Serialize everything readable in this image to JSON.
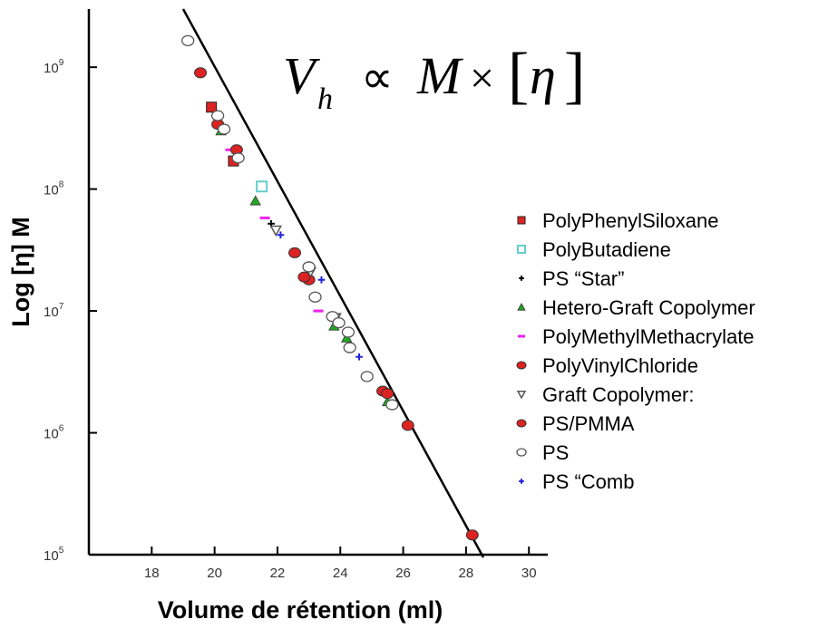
{
  "chart_data": {
    "type": "scatter",
    "title": "",
    "xlabel": "Volume de rétention (ml)",
    "ylabel": "Log [η] M",
    "xlim": [
      16,
      30.6
    ],
    "ylim": [
      100000,
      3000000000
    ],
    "yscale": "log",
    "x_ticks": [
      18,
      20,
      22,
      24,
      26,
      28,
      30
    ],
    "x_tick_labels": [
      "18",
      "20",
      "22",
      "24",
      "26",
      "28",
      "30"
    ],
    "y_ticks": [
      100000,
      1000000,
      10000000,
      100000000,
      1000000000
    ],
    "y_tick_labels": [
      {
        "base": "10",
        "exp": "5"
      },
      {
        "base": "10",
        "exp": "6"
      },
      {
        "base": "10",
        "exp": "7"
      },
      {
        "base": "10",
        "exp": "8"
      },
      {
        "base": "10",
        "exp": "9"
      }
    ],
    "grid": false,
    "legend_position": "right",
    "annotation": {
      "V": "V",
      "h": "h",
      "propto": "∝",
      "M": "M",
      "times": "×",
      "lbracket": "[",
      "eta": "η",
      "rbracket": "]"
    },
    "calibration_line": {
      "x": [
        19.0,
        28.55
      ],
      "y": [
        3000000000,
        95000
      ]
    },
    "series": [
      {
        "name": "PolyPhenylSiloxane",
        "marker": "square",
        "color": "#dd2222",
        "x": [
          19.9,
          20.6
        ],
        "y": [
          470000000,
          170000000
        ]
      },
      {
        "name": "PolyButadiene",
        "marker": "square-open",
        "color": "#66cccc",
        "x": [
          21.5
        ],
        "y": [
          105000000
        ]
      },
      {
        "name": "PS “Star”",
        "marker": "plus",
        "color": "#000000",
        "x": [
          21.8
        ],
        "y": [
          52000000
        ]
      },
      {
        "name": "Hetero-Graft Copolymer",
        "marker": "triangle",
        "color": "#22aa22",
        "x": [
          20.2,
          21.3,
          23.8,
          24.2,
          25.5
        ],
        "y": [
          300000000,
          80000000,
          7500000,
          6000000,
          1800000
        ]
      },
      {
        "name": "PolyMethylMethacrylate",
        "marker": "dash",
        "color": "#ee22ee",
        "x": [
          20.5,
          21.6,
          23.3
        ],
        "y": [
          210000000,
          58000000,
          10000000
        ]
      },
      {
        "name": "PolyVinylChloride",
        "marker": "circle",
        "color": "#dd2222",
        "x": [
          19.55,
          20.1,
          20.7,
          22.55,
          23.0,
          25.35,
          26.15,
          28.2
        ],
        "y": [
          900000000,
          340000000,
          210000000,
          30000000,
          18000000,
          2200000,
          1150000,
          145000
        ]
      },
      {
        "name": "Graft Copolymer:",
        "marker": "triangle-down-open",
        "color": "#555555",
        "x": [
          21.95,
          23.05,
          23.85
        ],
        "y": [
          46000000,
          21000000,
          8800000
        ]
      },
      {
        "name": "PS/PMMA",
        "marker": "circle",
        "color": "#dd2222",
        "x": [
          22.85,
          25.5
        ],
        "y": [
          19000000,
          2100000
        ]
      },
      {
        "name": "PS",
        "marker": "circle-open",
        "color": "#555555",
        "x": [
          19.15,
          20.1,
          20.3,
          20.75,
          23.0,
          23.2,
          23.75,
          23.95,
          24.25,
          24.3,
          24.85,
          25.65
        ],
        "y": [
          1650000000,
          400000000,
          310000000,
          180000000,
          23000000,
          13000000,
          9000000,
          8000000,
          6700000,
          5000000,
          2900000,
          1700000
        ]
      },
      {
        "name": "PS “Comb",
        "marker": "plus",
        "color": "#2222dd",
        "x": [
          22.1,
          23.4,
          24.6
        ],
        "y": [
          42000000,
          18000000,
          4200000
        ]
      }
    ]
  }
}
